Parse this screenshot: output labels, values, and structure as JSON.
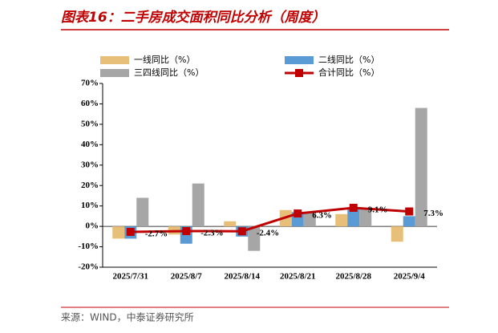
{
  "chart_data": {
    "type": "bar-line",
    "title": "图表16：二手房成交面积同比分析（周度）",
    "source": "来源：WIND，中泰证券研究所",
    "categories": [
      "2025/7/31",
      "2025/8/7",
      "2025/8/14",
      "2025/8/21",
      "2025/8/28",
      "2025/9/4"
    ],
    "series": [
      {
        "name": "一线同比（%）",
        "type": "bar",
        "color": "#e8bf78",
        "values": [
          -6,
          -4,
          2.5,
          8,
          6,
          -7.5
        ]
      },
      {
        "name": "二线同比（%）",
        "type": "bar",
        "color": "#5b9bd5",
        "values": [
          -6,
          -8.5,
          -5,
          7,
          8.5,
          5
        ]
      },
      {
        "name": "三四线同比（%）",
        "type": "bar",
        "color": "#a6a6a6",
        "values": [
          14,
          21,
          -12,
          7,
          9,
          58
        ]
      },
      {
        "name": "合计同比（%）",
        "type": "line",
        "color": "#c00000",
        "values": [
          -2.7,
          -2.3,
          -2.4,
          6.3,
          9.1,
          7.3
        ],
        "value_labels": [
          "-2.7%",
          "-2.3%",
          "-2.4%",
          "6.3%",
          "9.1%",
          "7.3%"
        ]
      }
    ],
    "ylim": [
      -20,
      70
    ],
    "yticks": [
      {
        "value": -20,
        "label": "-20%"
      },
      {
        "value": -10,
        "label": "-10%"
      },
      {
        "value": 0,
        "label": "0%"
      },
      {
        "value": 10,
        "label": "10%"
      },
      {
        "value": 20,
        "label": "20%"
      },
      {
        "value": 30,
        "label": "30%"
      },
      {
        "value": 40,
        "label": "40%"
      },
      {
        "value": 50,
        "label": "50%"
      },
      {
        "value": 60,
        "label": "60%"
      },
      {
        "value": 70,
        "label": "70%"
      }
    ]
  }
}
